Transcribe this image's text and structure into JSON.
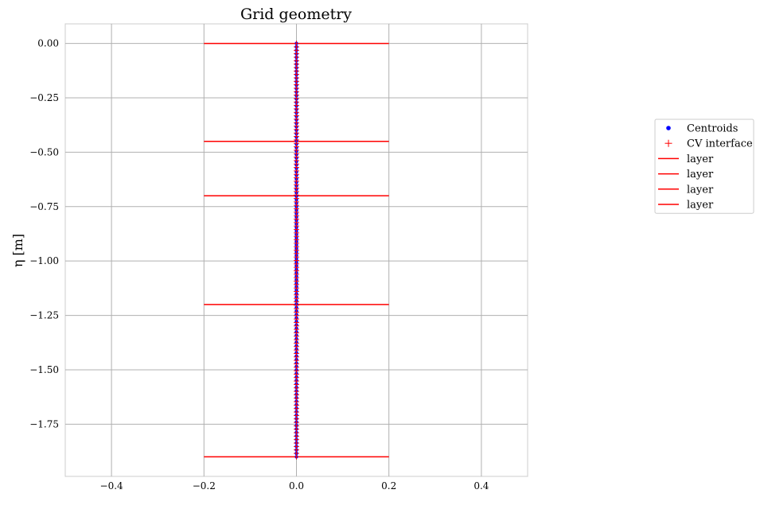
{
  "chart_data": {
    "type": "scatter",
    "title": "Grid geometry",
    "xlabel": "",
    "ylabel": "η [m]",
    "xlim": [
      -0.5,
      0.5
    ],
    "ylim": [
      -1.99,
      0.09
    ],
    "xticks": [
      -0.4,
      -0.2,
      0.0,
      0.2,
      0.4
    ],
    "xtick_labels": [
      "−0.4",
      "−0.2",
      "0.0",
      "0.2",
      "0.4"
    ],
    "yticks": [
      0.0,
      -0.25,
      -0.5,
      -0.75,
      -1.0,
      -1.25,
      -1.5,
      -1.75
    ],
    "ytick_labels": [
      "0.00",
      "−0.25",
      "−0.50",
      "−0.75",
      "−1.00",
      "−1.25",
      "−1.50",
      "−1.75"
    ],
    "grid": true,
    "legend_position": "outside-right",
    "series": [
      {
        "name": "Centroids",
        "kind": "points",
        "marker": "dot",
        "color": "#0000ff",
        "x": 0.0,
        "y_from": -1.9,
        "y_to": 0.0,
        "count": 120
      },
      {
        "name": "CV interface",
        "kind": "points",
        "marker": "plus",
        "color": "#ff0000",
        "x": 0.0,
        "y_from": -1.9,
        "y_to": 0.0,
        "count": 121
      }
    ],
    "layers": [
      {
        "name": "layer",
        "color": "#ff0000",
        "x": [
          -0.2,
          0.2
        ],
        "y": 0.0
      },
      {
        "name": "layer",
        "color": "#ff0000",
        "x": [
          -0.2,
          0.2
        ],
        "y": -0.45
      },
      {
        "name": "layer",
        "color": "#ff0000",
        "x": [
          -0.2,
          0.2
        ],
        "y": -0.7
      },
      {
        "name": "layer",
        "color": "#ff0000",
        "x": [
          -0.2,
          0.2
        ],
        "y": -1.2
      },
      {
        "name": "layer",
        "color": "#ff0000",
        "x": [
          -0.2,
          0.2
        ],
        "y": -1.9
      }
    ],
    "legend": [
      {
        "label": "Centroids",
        "marker": "dot",
        "color": "#0000ff"
      },
      {
        "label": "CV interface",
        "marker": "plus",
        "color": "#ff0000"
      },
      {
        "label": "layer",
        "marker": "line",
        "color": "#ff0000"
      },
      {
        "label": "layer",
        "marker": "line",
        "color": "#ff0000"
      },
      {
        "label": "layer",
        "marker": "line",
        "color": "#ff0000"
      },
      {
        "label": "layer",
        "marker": "line",
        "color": "#ff0000"
      }
    ]
  }
}
